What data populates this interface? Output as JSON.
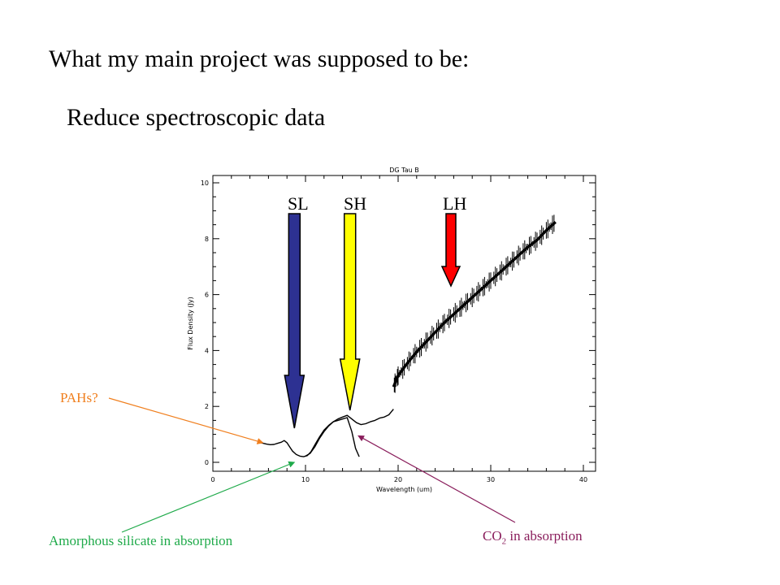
{
  "slide": {
    "title": "What my main project was supposed to be:",
    "subtitle": "Reduce spectroscopic data"
  },
  "bands": [
    {
      "label": "SL",
      "color": "#2d3192",
      "target": 8.8
    },
    {
      "label": "SH",
      "color": "#ffff00",
      "target": 14.8
    },
    {
      "label": "LH",
      "color": "#ff0000",
      "target": 25.7
    }
  ],
  "annotations": {
    "pahs": {
      "text": "PAHs?",
      "color": "#f07f1e"
    },
    "silicate": {
      "text": "Amorphous silicate in absorption",
      "color": "#1faa4a"
    },
    "co2": {
      "prefix": "CO",
      "sub": "2",
      "suffix": " in absorption",
      "color": "#8a1e5c"
    }
  },
  "chart_data": {
    "type": "line",
    "title": "DG Tau B",
    "xlabel": "Wavelength (um)",
    "ylabel": "Flux Density (Jy)",
    "xlim": [
      0,
      40
    ],
    "ylim": [
      0,
      10
    ],
    "xticks": [
      0,
      10,
      20,
      30,
      40
    ],
    "yticks": [
      0,
      2,
      4,
      6,
      8,
      10
    ],
    "grid": false,
    "series": [
      {
        "segment": "SL",
        "x": [
          5.2,
          5.8,
          6.2,
          6.6,
          7.0,
          7.4,
          7.7,
          8.0,
          8.3,
          8.6,
          9.0,
          9.4,
          9.8,
          10.2,
          10.6,
          11.0,
          11.5,
          12.0,
          12.5,
          13.0,
          13.5,
          14.0,
          14.5,
          15.0,
          15.4,
          15.8
        ],
        "y": [
          0.7,
          0.65,
          0.63,
          0.64,
          0.68,
          0.72,
          0.78,
          0.7,
          0.55,
          0.4,
          0.28,
          0.22,
          0.2,
          0.24,
          0.38,
          0.62,
          0.9,
          1.15,
          1.32,
          1.45,
          1.5,
          1.55,
          1.6,
          1.1,
          0.5,
          0.2
        ]
      },
      {
        "segment": "SH",
        "x": [
          10.0,
          10.5,
          11.0,
          11.5,
          12.0,
          12.5,
          13.0,
          13.5,
          14.0,
          14.5,
          15.0,
          15.5,
          16.0,
          16.5,
          17.0,
          17.5,
          18.0,
          18.5,
          19.0,
          19.5
        ],
        "y": [
          0.22,
          0.32,
          0.55,
          0.85,
          1.1,
          1.3,
          1.45,
          1.55,
          1.62,
          1.68,
          1.55,
          1.42,
          1.35,
          1.38,
          1.45,
          1.5,
          1.58,
          1.62,
          1.7,
          1.9
        ]
      },
      {
        "segment": "LH",
        "x": [
          19.5,
          20.0,
          21.0,
          22.0,
          23.0,
          24.0,
          25.0,
          26.0,
          27.0,
          28.0,
          29.0,
          30.0,
          31.0,
          32.0,
          33.0,
          34.0,
          35.0,
          36.0,
          37.0
        ],
        "y": [
          2.7,
          3.1,
          3.55,
          3.95,
          4.3,
          4.65,
          5.0,
          5.3,
          5.6,
          5.9,
          6.2,
          6.5,
          6.8,
          7.1,
          7.4,
          7.7,
          7.95,
          8.3,
          8.6
        ]
      }
    ]
  }
}
